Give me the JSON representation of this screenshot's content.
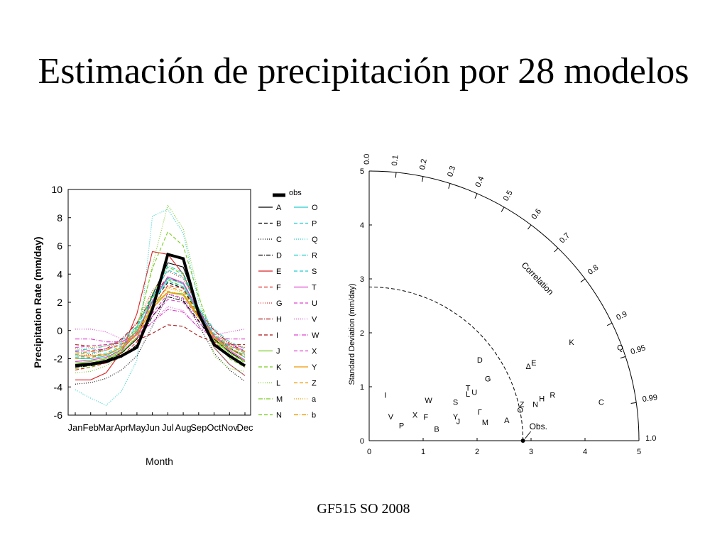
{
  "slide": {
    "title": "Estimación de precipitación por 28 modelos",
    "footer": "GF515 SO 2008"
  },
  "chart_data": [
    {
      "type": "line",
      "ylabel": "Precipitation Rate (mm/day)",
      "xlabel": "Month",
      "categories": [
        "Jan",
        "Feb",
        "Mar",
        "Apr",
        "May",
        "Jun",
        "Jul",
        "Aug",
        "Sep",
        "Oct",
        "Nov",
        "Dec"
      ],
      "ylim": [
        -6,
        10
      ],
      "yticks": [
        10,
        8,
        6,
        4,
        2,
        0,
        -2,
        -4,
        -6
      ],
      "legend_position": "right",
      "obs_label": "obs",
      "obs": [
        -2.5,
        -2.4,
        -2.2,
        -1.8,
        -1.2,
        1.5,
        5.4,
        5.1,
        1.2,
        -1.0,
        -1.8,
        -2.5
      ],
      "series": [
        {
          "name": "A",
          "color": "#000000",
          "dash": "",
          "values": [
            -2.4,
            -2.3,
            -2.1,
            -1.6,
            -0.6,
            2.5,
            4.8,
            4.5,
            1.5,
            -0.6,
            -1.5,
            -2.2
          ]
        },
        {
          "name": "B",
          "color": "#000000",
          "dash": "5,3",
          "values": [
            -2.0,
            -1.9,
            -1.7,
            -1.2,
            0.0,
            2.0,
            3.4,
            3.0,
            1.0,
            -0.4,
            -1.2,
            -1.9
          ]
        },
        {
          "name": "C",
          "color": "#000000",
          "dash": "1,2",
          "values": [
            -3.8,
            -3.7,
            -3.4,
            -2.8,
            -1.8,
            0.3,
            2.6,
            2.2,
            0.4,
            -1.6,
            -2.8,
            -3.6
          ]
        },
        {
          "name": "D",
          "color": "#000000",
          "dash": "6,2,1,2",
          "values": [
            -2.6,
            -2.5,
            -2.3,
            -1.9,
            -1.0,
            1.0,
            2.4,
            2.1,
            0.7,
            -0.9,
            -1.9,
            -2.5
          ]
        },
        {
          "name": "E",
          "color": "#dd2222",
          "dash": "",
          "values": [
            -3.5,
            -3.5,
            -3.0,
            -1.5,
            1.2,
            5.6,
            5.4,
            4.0,
            1.4,
            -1.2,
            -2.4,
            -3.2
          ]
        },
        {
          "name": "F",
          "color": "#dd2222",
          "dash": "5,3",
          "values": [
            -2.8,
            -2.6,
            -2.3,
            -1.8,
            -0.8,
            1.6,
            3.2,
            3.0,
            1.2,
            -0.8,
            -1.8,
            -2.6
          ]
        },
        {
          "name": "G",
          "color": "#dd2222",
          "dash": "1,2",
          "values": [
            -1.8,
            -1.7,
            -1.4,
            -0.7,
            0.6,
            2.8,
            4.2,
            3.7,
            1.6,
            0.0,
            -1.0,
            -1.6
          ]
        },
        {
          "name": "H",
          "color": "#aa1111",
          "dash": "6,2,1,2",
          "values": [
            -1.6,
            -1.5,
            -1.3,
            -0.6,
            0.5,
            2.4,
            3.8,
            3.3,
            1.4,
            0.0,
            -0.9,
            -1.5
          ]
        },
        {
          "name": "I",
          "color": "#aa1111",
          "dash": "5,3",
          "values": [
            -1.0,
            -1.1,
            -1.0,
            -0.9,
            -0.7,
            -0.2,
            0.4,
            0.3,
            -0.4,
            -0.8,
            -1.0,
            -1.0
          ]
        },
        {
          "name": "J",
          "color": "#77cc22",
          "dash": "",
          "values": [
            -2.3,
            -2.2,
            -2.0,
            -1.5,
            -0.5,
            1.8,
            2.7,
            2.6,
            1.0,
            -0.7,
            -1.6,
            -2.2
          ]
        },
        {
          "name": "K",
          "color": "#77cc22",
          "dash": "5,3",
          "values": [
            -2.7,
            -2.6,
            -2.2,
            -1.5,
            0.2,
            4.4,
            7.0,
            6.0,
            2.4,
            -0.6,
            -2.0,
            -2.6
          ]
        },
        {
          "name": "L",
          "color": "#77cc22",
          "dash": "1,2",
          "values": [
            -3.0,
            -2.9,
            -2.5,
            -1.8,
            -0.2,
            4.6,
            8.9,
            7.2,
            2.6,
            -1.8,
            -2.7,
            -2.9
          ]
        },
        {
          "name": "M",
          "color": "#77cc22",
          "dash": "6,2,1,2",
          "values": [
            -2.2,
            -2.1,
            -1.9,
            -1.3,
            -0.2,
            2.3,
            3.6,
            3.1,
            1.2,
            -0.5,
            -1.4,
            -2.1
          ]
        },
        {
          "name": "N",
          "color": "#77cc22",
          "dash": "5,3",
          "values": [
            -2.5,
            -2.4,
            -2.0,
            -1.3,
            0.3,
            2.6,
            4.5,
            4.0,
            1.6,
            -0.5,
            -1.6,
            -2.3
          ]
        },
        {
          "name": "O",
          "color": "#22cccc",
          "dash": "",
          "values": [
            -2.0,
            -2.0,
            -1.8,
            -1.2,
            0.0,
            2.0,
            3.7,
            3.3,
            1.2,
            -0.4,
            -1.3,
            -1.9
          ]
        },
        {
          "name": "P",
          "color": "#22cccc",
          "dash": "5,3",
          "values": [
            -1.7,
            -1.6,
            -1.4,
            -0.9,
            0.2,
            2.4,
            4.3,
            3.8,
            1.5,
            -0.2,
            -1.1,
            -1.6
          ]
        },
        {
          "name": "Q",
          "color": "#22cccc",
          "dash": "1,2",
          "values": [
            -4.2,
            -4.8,
            -5.3,
            -4.3,
            -2.1,
            8.1,
            8.6,
            6.9,
            2.0,
            -1.2,
            -2.4,
            -3.2
          ]
        },
        {
          "name": "R",
          "color": "#22cccc",
          "dash": "6,2,1,2",
          "values": [
            -1.4,
            -1.3,
            -1.1,
            -0.7,
            0.3,
            2.3,
            4.6,
            4.1,
            1.6,
            0.1,
            -0.8,
            -1.3
          ]
        },
        {
          "name": "S",
          "color": "#22cccc",
          "dash": "5,3",
          "values": [
            -1.9,
            -1.8,
            -1.6,
            -1.1,
            0.0,
            2.0,
            3.5,
            3.1,
            1.3,
            -0.3,
            -1.2,
            -1.8
          ]
        },
        {
          "name": "T",
          "color": "#dd44cc",
          "dash": "",
          "values": [
            -2.2,
            -2.1,
            -1.9,
            -1.4,
            -0.2,
            2.1,
            3.8,
            3.4,
            1.4,
            -0.4,
            -1.4,
            -2.1
          ]
        },
        {
          "name": "U",
          "color": "#dd44cc",
          "dash": "5,3",
          "values": [
            -1.5,
            -1.4,
            -1.3,
            -1.0,
            -0.3,
            1.2,
            2.6,
            2.3,
            0.9,
            -0.4,
            -1.1,
            -1.4
          ]
        },
        {
          "name": "V",
          "color": "#dd44cc",
          "dash": "1,2",
          "values": [
            0.1,
            0.1,
            -0.1,
            -0.6,
            -0.3,
            0.6,
            1.7,
            1.4,
            0.2,
            -0.3,
            -0.1,
            0.1
          ]
        },
        {
          "name": "W",
          "color": "#dd44cc",
          "dash": "6,2,1,2",
          "values": [
            -0.6,
            -0.6,
            -0.8,
            -0.8,
            -0.5,
            0.6,
            1.5,
            1.3,
            0.2,
            -0.5,
            -0.6,
            -0.6
          ]
        },
        {
          "name": "X",
          "color": "#dd44cc",
          "dash": "5,3",
          "values": [
            -1.2,
            -1.1,
            -1.0,
            -0.8,
            -0.2,
            1.0,
            2.2,
            2.0,
            0.6,
            -0.6,
            -1.0,
            -1.2
          ]
        },
        {
          "name": "Y",
          "color": "#ee9900",
          "dash": "",
          "values": [
            -1.8,
            -1.8,
            -1.7,
            -1.2,
            -0.3,
            1.6,
            2.7,
            2.5,
            0.9,
            -0.5,
            -1.3,
            -1.7
          ]
        },
        {
          "name": "Z",
          "color": "#ee9900",
          "dash": "5,3",
          "values": [
            -2.0,
            -1.9,
            -1.7,
            -1.2,
            -0.1,
            1.8,
            3.1,
            2.8,
            1.1,
            -0.5,
            -1.3,
            -1.9
          ]
        },
        {
          "name": "a",
          "color": "#ee9900",
          "dash": "1,2",
          "values": [
            -1.3,
            -1.2,
            -1.1,
            -0.8,
            0.1,
            1.7,
            3.0,
            2.7,
            1.0,
            -0.3,
            -0.9,
            -1.2
          ]
        },
        {
          "name": "b",
          "color": "#ee9900",
          "dash": "6,2,1,2",
          "values": [
            -1.6,
            -1.5,
            -1.4,
            -1.0,
            -0.1,
            1.5,
            2.8,
            2.5,
            1.0,
            -0.4,
            -1.1,
            -1.5
          ]
        }
      ]
    },
    {
      "type": "scatter",
      "subtype": "taylor-diagram",
      "ylabel": "Standard Deviation (mm/day)",
      "correlation_label": "Correlation",
      "reference_label": "Obs.",
      "reference_std": 2.85,
      "xlim": [
        0,
        5
      ],
      "ylim": [
        0,
        5
      ],
      "ticks": [
        0,
        1,
        2,
        3,
        4,
        5
      ],
      "correlation_ticks": [
        "0.0",
        "0.1",
        "0.2",
        "0.3",
        "0.4",
        "0.5",
        "0.6",
        "0.7",
        "0.8",
        "0.9",
        "0.95",
        "0.99",
        "1.0"
      ],
      "points": [
        {
          "label": "I",
          "x": 0.3,
          "y": 0.85
        },
        {
          "label": "V",
          "x": 0.4,
          "y": 0.45
        },
        {
          "label": "P",
          "x": 0.6,
          "y": 0.28
        },
        {
          "label": "X",
          "x": 0.85,
          "y": 0.48
        },
        {
          "label": "W",
          "x": 1.1,
          "y": 0.75
        },
        {
          "label": "F",
          "x": 1.05,
          "y": 0.44
        },
        {
          "label": "B",
          "x": 1.25,
          "y": 0.22
        },
        {
          "label": "S",
          "x": 1.6,
          "y": 0.72
        },
        {
          "label": "Y",
          "x": 1.6,
          "y": 0.45
        },
        {
          "label": "J",
          "x": 1.65,
          "y": 0.36
        },
        {
          "label": "T",
          "x": 1.83,
          "y": 0.98
        },
        {
          "label": "L",
          "x": 1.83,
          "y": 0.87
        },
        {
          "label": "U",
          "x": 1.95,
          "y": 0.9
        },
        {
          "label": "Γ",
          "x": 2.05,
          "y": 0.53
        },
        {
          "label": "M",
          "x": 2.15,
          "y": 0.34
        },
        {
          "label": "D",
          "x": 2.05,
          "y": 1.5
        },
        {
          "label": "G",
          "x": 2.2,
          "y": 1.15
        },
        {
          "label": "A",
          "x": 2.55,
          "y": 0.38
        },
        {
          "label": "O",
          "x": 2.8,
          "y": 0.57
        },
        {
          "label": "Z",
          "x": 2.83,
          "y": 0.68
        },
        {
          "label": "Δ",
          "x": 2.95,
          "y": 1.38
        },
        {
          "label": "E",
          "x": 3.05,
          "y": 1.45
        },
        {
          "label": "N",
          "x": 3.08,
          "y": 0.68
        },
        {
          "label": "H",
          "x": 3.2,
          "y": 0.78
        },
        {
          "label": "R",
          "x": 3.4,
          "y": 0.85
        },
        {
          "label": "K",
          "x": 3.75,
          "y": 1.83
        },
        {
          "label": "C",
          "x": 4.3,
          "y": 0.72
        },
        {
          "label": "Q",
          "x": 4.65,
          "y": 1.73
        }
      ]
    }
  ]
}
